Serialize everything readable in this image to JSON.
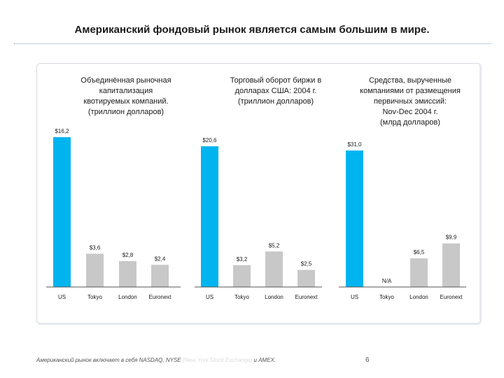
{
  "page": {
    "title": "Американский фондовый рынок является самым большим в мире.",
    "footnote_prefix": "Американский рынок включает в себя NASDAQ, NYSE",
    "footnote_faded": " (New York Stock Exchange)",
    "footnote_suffix": " и AMEX.",
    "page_number": "6"
  },
  "colors": {
    "us": "#00b4f0",
    "other": "#c8c8c8",
    "text": "#1a1a1a"
  },
  "chart_data": [
    {
      "type": "bar",
      "title": [
        "Объединённая рыночная",
        "капитализация",
        "квотируемых компаний.",
        "(триллион долларов)"
      ],
      "categories": [
        "US",
        "Tokyo",
        "London",
        "Euronext"
      ],
      "values": [
        16.2,
        3.6,
        2.8,
        2.4
      ],
      "labels": [
        "$16,2",
        "$3,6",
        "$2,8",
        "$2,4"
      ],
      "ylim": [
        0,
        16.2
      ]
    },
    {
      "type": "bar",
      "title": [
        "Торговый оборот биржи в",
        "долларах США: 2004 г.",
        "(триллион долларов)"
      ],
      "categories": [
        "US",
        "Tokyo",
        "London",
        "Euronext"
      ],
      "values": [
        20.6,
        3.2,
        5.2,
        2.5
      ],
      "labels": [
        "$20,6",
        "$3,2",
        "$5,2",
        "$2,5"
      ],
      "ylim": [
        0,
        20.6
      ]
    },
    {
      "type": "bar",
      "title": [
        "Средства, вырученные",
        "компаниями от размещения",
        "первичных эмиссий:",
        "Nov-Dec 2004 г.",
        "(млрд долларов)"
      ],
      "categories": [
        "US",
        "Tokyo",
        "London",
        "Euronext"
      ],
      "values": [
        31.0,
        null,
        6.5,
        9.9
      ],
      "labels": [
        "$31,0",
        "N/A",
        "$6,5",
        "$9,9"
      ],
      "ylim": [
        0,
        31.0
      ]
    }
  ]
}
